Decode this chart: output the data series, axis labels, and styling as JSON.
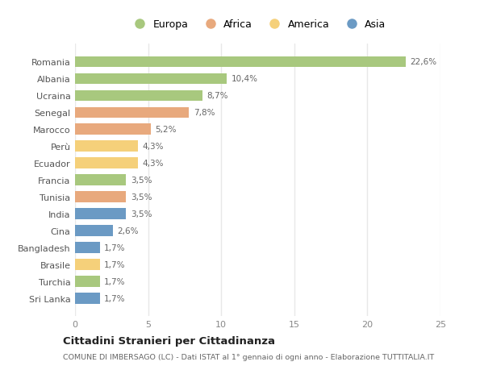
{
  "countries": [
    "Romania",
    "Albania",
    "Ucraina",
    "Senegal",
    "Marocco",
    "Perù",
    "Ecuador",
    "Francia",
    "Tunisia",
    "India",
    "Cina",
    "Bangladesh",
    "Brasile",
    "Turchia",
    "Sri Lanka"
  ],
  "values": [
    22.6,
    10.4,
    8.7,
    7.8,
    5.2,
    4.3,
    4.3,
    3.5,
    3.5,
    3.5,
    2.6,
    1.7,
    1.7,
    1.7,
    1.7
  ],
  "labels": [
    "22,6%",
    "10,4%",
    "8,7%",
    "7,8%",
    "5,2%",
    "4,3%",
    "4,3%",
    "3,5%",
    "3,5%",
    "3,5%",
    "2,6%",
    "1,7%",
    "1,7%",
    "1,7%",
    "1,7%"
  ],
  "continents": [
    "Europa",
    "Europa",
    "Europa",
    "Africa",
    "Africa",
    "America",
    "America",
    "Europa",
    "Africa",
    "Asia",
    "Asia",
    "Asia",
    "America",
    "Europa",
    "Asia"
  ],
  "continent_colors": {
    "Europa": "#a8c87e",
    "Africa": "#e8a97d",
    "America": "#f5d07a",
    "Asia": "#6b9ac4"
  },
  "legend_order": [
    "Europa",
    "Africa",
    "America",
    "Asia"
  ],
  "xlim": [
    0,
    25
  ],
  "xticks": [
    0,
    5,
    10,
    15,
    20,
    25
  ],
  "title": "Cittadini Stranieri per Cittadinanza",
  "subtitle": "COMUNE DI IMBERSAGO (LC) - Dati ISTAT al 1° gennaio di ogni anno - Elaborazione TUTTITALIA.IT",
  "background_color": "#ffffff",
  "grid_color": "#e8e8e8",
  "bar_height": 0.65,
  "label_fontsize": 7.5,
  "ytick_fontsize": 8,
  "xtick_fontsize": 8
}
